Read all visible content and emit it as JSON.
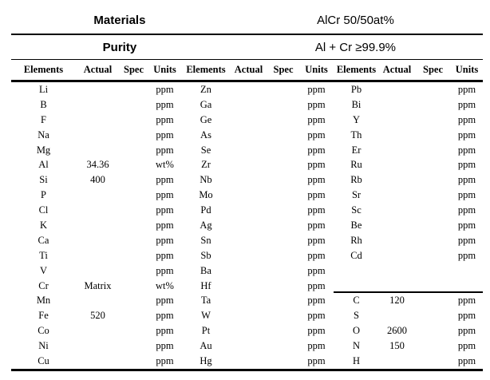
{
  "header": {
    "materials_label": "Materials",
    "materials_value": "AlCr 50/50at%",
    "purity_label": "Purity",
    "purity_value": "Al + Cr ≥99.9%"
  },
  "table": {
    "column_headers": [
      "Elements",
      "Actual",
      "Spec",
      "Units",
      "Elements",
      "Actual",
      "Spec",
      "Units",
      "Elements",
      "Actual",
      "Spec",
      "Units"
    ],
    "column_kinds": [
      "element",
      "actual",
      "spec",
      "units"
    ],
    "group3_separator_after_row": 13,
    "rows": [
      [
        "Li",
        "",
        "",
        "ppm",
        "Zn",
        "",
        "",
        "ppm",
        "Pb",
        "",
        "",
        "ppm"
      ],
      [
        "B",
        "",
        "",
        "ppm",
        "Ga",
        "",
        "",
        "ppm",
        "Bi",
        "",
        "",
        "ppm"
      ],
      [
        "F",
        "",
        "",
        "ppm",
        "Ge",
        "",
        "",
        "ppm",
        "Y",
        "",
        "",
        "ppm"
      ],
      [
        "Na",
        "",
        "",
        "ppm",
        "As",
        "",
        "",
        "ppm",
        "Th",
        "",
        "",
        "ppm"
      ],
      [
        "Mg",
        "",
        "",
        "ppm",
        "Se",
        "",
        "",
        "ppm",
        "Er",
        "",
        "",
        "ppm"
      ],
      [
        "Al",
        "34.36",
        "",
        "wt%",
        "Zr",
        "",
        "",
        "ppm",
        "Ru",
        "",
        "",
        "ppm"
      ],
      [
        "Si",
        "400",
        "",
        "ppm",
        "Nb",
        "",
        "",
        "ppm",
        "Rb",
        "",
        "",
        "ppm"
      ],
      [
        "P",
        "",
        "",
        "ppm",
        "Mo",
        "",
        "",
        "ppm",
        "Sr",
        "",
        "",
        "ppm"
      ],
      [
        "Cl",
        "",
        "",
        "ppm",
        "Pd",
        "",
        "",
        "ppm",
        "Sc",
        "",
        "",
        "ppm"
      ],
      [
        "K",
        "",
        "",
        "ppm",
        "Ag",
        "",
        "",
        "ppm",
        "Be",
        "",
        "",
        "ppm"
      ],
      [
        "Ca",
        "",
        "",
        "ppm",
        "Sn",
        "",
        "",
        "ppm",
        "Rh",
        "",
        "",
        "ppm"
      ],
      [
        "Ti",
        "",
        "",
        "ppm",
        "Sb",
        "",
        "",
        "ppm",
        "Cd",
        "",
        "",
        "ppm"
      ],
      [
        "V",
        "",
        "",
        "ppm",
        "Ba",
        "",
        "",
        "ppm",
        "",
        "",
        "",
        ""
      ],
      [
        "Cr",
        "Matrix",
        "",
        "wt%",
        "Hf",
        "",
        "",
        "ppm",
        "",
        "",
        "",
        ""
      ],
      [
        "Mn",
        "",
        "",
        "ppm",
        "Ta",
        "",
        "",
        "ppm",
        "C",
        "120",
        "",
        "ppm"
      ],
      [
        "Fe",
        "520",
        "",
        "ppm",
        "W",
        "",
        "",
        "ppm",
        "S",
        "",
        "",
        "ppm"
      ],
      [
        "Co",
        "",
        "",
        "ppm",
        "Pt",
        "",
        "",
        "ppm",
        "O",
        "2600",
        "",
        "ppm"
      ],
      [
        "Ni",
        "",
        "",
        "ppm",
        "Au",
        "",
        "",
        "ppm",
        "N",
        "150",
        "",
        "ppm"
      ],
      [
        "Cu",
        "",
        "",
        "ppm",
        "Hg",
        "",
        "",
        "ppm",
        "H",
        "",
        "",
        "ppm"
      ]
    ]
  },
  "colors": {
    "text": "#000000",
    "background": "#ffffff",
    "rule": "#000000"
  }
}
